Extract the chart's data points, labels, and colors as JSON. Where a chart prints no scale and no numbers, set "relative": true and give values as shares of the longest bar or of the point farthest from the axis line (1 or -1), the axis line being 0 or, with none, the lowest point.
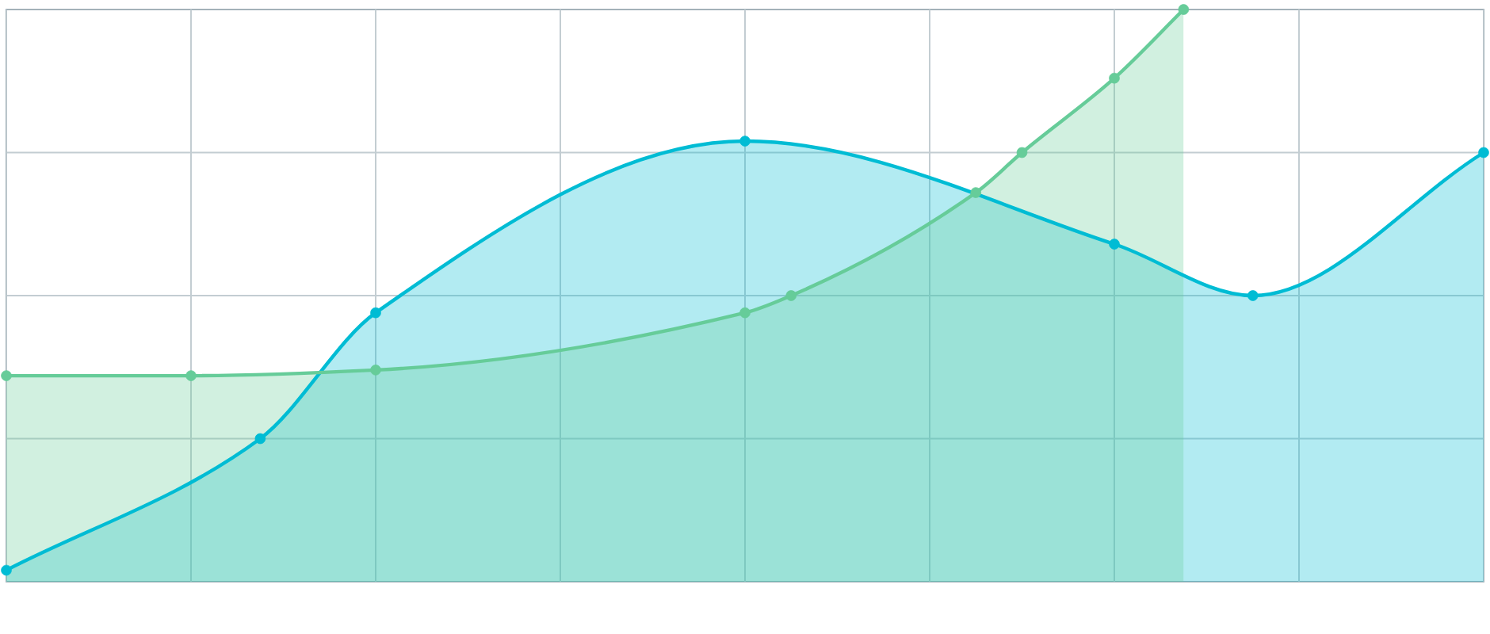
{
  "chart_data": {
    "type": "area",
    "relative": true,
    "categories": [
      null,
      null,
      null,
      null,
      null,
      null,
      null,
      null,
      null,
      null,
      null,
      null,
      null,
      null,
      null,
      null,
      null,
      null,
      null,
      null,
      null,
      null,
      null,
      null,
      null,
      null,
      null,
      null,
      null,
      null,
      null,
      null,
      null,
      null,
      null,
      null,
      null,
      null,
      null,
      null,
      null,
      null,
      null,
      null,
      null,
      null,
      null,
      null,
      null,
      null,
      null,
      null,
      null,
      null,
      null,
      null,
      null,
      null,
      null,
      null,
      null,
      null,
      null,
      null,
      null
    ],
    "grid": true,
    "marker": "circle",
    "series": [
      {
        "color": "#00bcd4",
        "values": [
          0.02,
          null,
          null,
          null,
          null,
          null,
          null,
          null,
          null,
          null,
          null,
          0.25,
          null,
          null,
          null,
          null,
          0.47,
          null,
          null,
          null,
          null,
          null,
          null,
          null,
          null,
          null,
          null,
          null,
          null,
          null,
          null,
          null,
          0.77,
          null,
          null,
          null,
          null,
          null,
          null,
          null,
          null,
          null,
          null,
          null,
          null,
          null,
          null,
          null,
          0.59,
          null,
          null,
          null,
          null,
          null,
          0.5,
          null,
          null,
          null,
          null,
          null,
          null,
          null,
          null,
          null,
          0.75
        ]
      },
      {
        "color": "#66cc99",
        "values": [
          0.36,
          null,
          null,
          null,
          null,
          null,
          null,
          null,
          0.36,
          null,
          null,
          null,
          null,
          null,
          null,
          null,
          0.37,
          null,
          null,
          null,
          null,
          null,
          null,
          null,
          null,
          null,
          null,
          null,
          null,
          null,
          null,
          null,
          0.47,
          null,
          0.5,
          null,
          null,
          null,
          null,
          null,
          null,
          null,
          0.68,
          null,
          0.75,
          null,
          null,
          null,
          0.88,
          null,
          null,
          1,
          null,
          null,
          null,
          null,
          null,
          null,
          null,
          null,
          null,
          null,
          null,
          null,
          null
        ]
      }
    ]
  }
}
